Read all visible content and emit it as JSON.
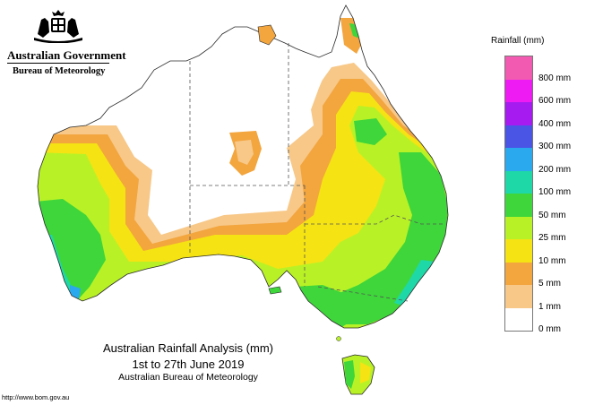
{
  "header": {
    "org": "Australian Government",
    "agency": "Bureau of Meteorology"
  },
  "legend": {
    "title": "Rainfall (mm)",
    "items": [
      {
        "label": "800 mm",
        "color": "#f25ab1"
      },
      {
        "label": "600 mm",
        "color": "#ee1cf2"
      },
      {
        "label": "400 mm",
        "color": "#a61cf0"
      },
      {
        "label": "300 mm",
        "color": "#4a55e6"
      },
      {
        "label": "200 mm",
        "color": "#2aa9ee"
      },
      {
        "label": "100 mm",
        "color": "#1fd8a8"
      },
      {
        "label": "50 mm",
        "color": "#3ed63a"
      },
      {
        "label": "25 mm",
        "color": "#b8f226"
      },
      {
        "label": "10 mm",
        "color": "#f5e313"
      },
      {
        "label": "5 mm",
        "color": "#f3a53e"
      },
      {
        "label": "1 mm",
        "color": "#f7c888"
      },
      {
        "label": "0 mm",
        "color": "#ffffff"
      }
    ]
  },
  "caption": {
    "line1": "Australian Rainfall Analysis (mm)",
    "line2": "1st to 27th June 2019",
    "line3": "Australian Bureau of Meteorology"
  },
  "footer": {
    "url": "http://www.bom.gov.au"
  }
}
